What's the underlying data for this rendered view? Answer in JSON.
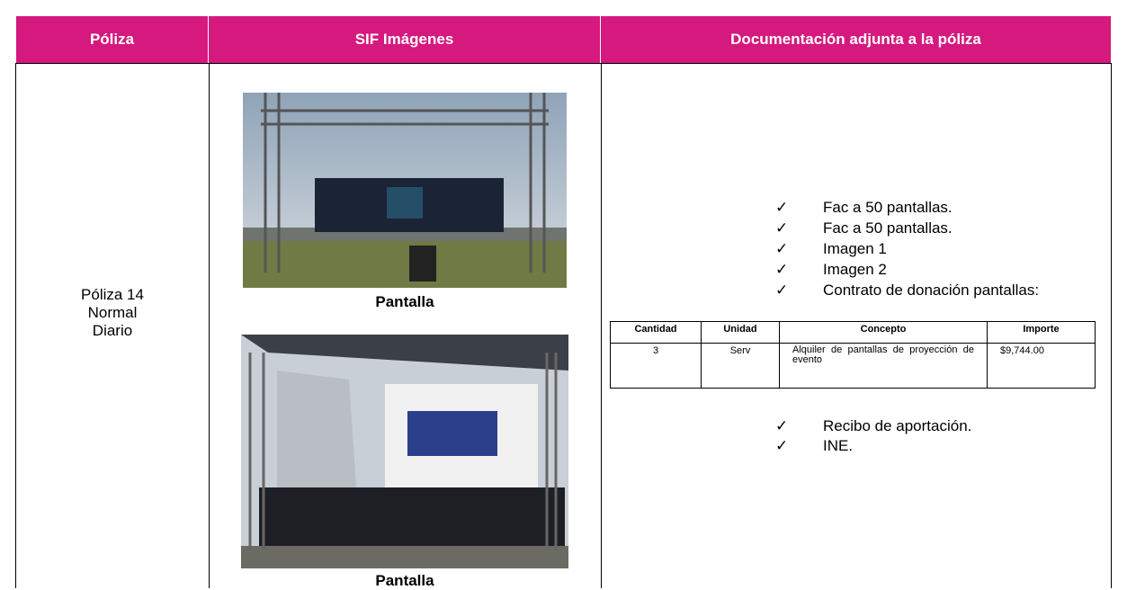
{
  "header": {
    "columns": [
      "Póliza",
      "SIF Imágenes",
      "Documentación adjunta a la póliza"
    ]
  },
  "poliza": {
    "lines": [
      "Póliza 14",
      "Normal",
      "Diario"
    ]
  },
  "images": [
    {
      "caption": "Pantalla"
    },
    {
      "caption": "Pantalla"
    }
  ],
  "documents": {
    "before": [
      "Fac a 50 pantallas.",
      "Fac a 50 pantallas.",
      "Imagen 1",
      "Imagen 2",
      "Contrato de donación pantallas:"
    ],
    "table": {
      "columns": [
        "Cantidad",
        "Unidad",
        "Concepto",
        "Importe"
      ],
      "rows": [
        [
          "3",
          "Serv",
          "Alquiler de pantallas de proyección de evento",
          "$9,744.00"
        ]
      ]
    },
    "after": [
      "Recibo de aportación.",
      "INE."
    ]
  }
}
